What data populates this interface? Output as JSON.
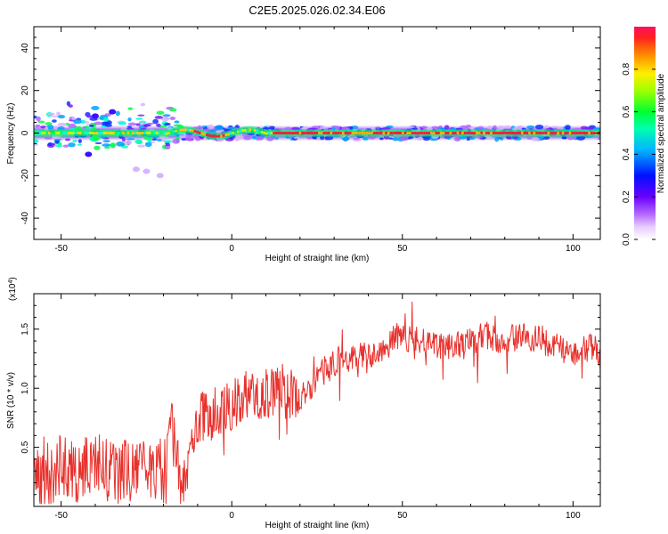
{
  "title": "C2E5.2025.026.02.34.E06",
  "chart_data": [
    {
      "type": "heatmap",
      "name": "spectrogram",
      "xlabel": "Height of straight line (km)",
      "ylabel": "Frequency (Hz)",
      "xlim": [
        -58,
        108
      ],
      "ylim": [
        -50,
        50
      ],
      "xticks": [
        -50,
        0,
        50,
        100
      ],
      "xtick_labels": [
        "-50",
        "0",
        "50",
        "100"
      ],
      "yticks": [
        -40,
        -20,
        0,
        20,
        40
      ],
      "ytick_labels": [
        "-40",
        "-20",
        "0",
        "20",
        "40"
      ],
      "colorbar": {
        "label": "Normalized spectral amplitude",
        "range": [
          0,
          1
        ],
        "ticks": [
          0.0,
          0.2,
          0.4,
          0.6,
          0.8
        ],
        "tick_labels": [
          "0.0",
          "0.2",
          "0.4",
          "0.6",
          "0.8"
        ]
      },
      "description_points": {
        "band_center_hz": 0,
        "strong_band_x_range": [
          -58,
          108
        ]
      }
    },
    {
      "type": "line",
      "name": "snr",
      "xlabel": "Height of straight line (km)",
      "ylabel": "SNR (10 * v/v)",
      "exponent_label": "(x10",
      "exponent_power": "4",
      "exponent_close": ")",
      "xlim": [
        -58,
        108
      ],
      "ylim": [
        0,
        1.8
      ],
      "xticks": [
        -50,
        0,
        50,
        100
      ],
      "xtick_labels": [
        "-50",
        "0",
        "50",
        "100"
      ],
      "yticks": [
        0.5,
        1.0,
        1.5
      ],
      "ytick_labels": [
        "0.5",
        "1.0",
        "1.5"
      ],
      "color": "#e8312c",
      "series": {
        "x": [
          -58,
          -55,
          -50,
          -45,
          -40,
          -35,
          -30,
          -25,
          -20,
          -18,
          -15,
          -12,
          -10,
          -5,
          0,
          5,
          10,
          15,
          20,
          25,
          30,
          35,
          40,
          45,
          48,
          55,
          60,
          65,
          70,
          75,
          80,
          85,
          90,
          95,
          100,
          105,
          108
        ],
        "y": [
          0.3,
          0.25,
          0.35,
          0.3,
          0.35,
          0.3,
          0.28,
          0.3,
          0.3,
          0.8,
          0.2,
          0.4,
          0.75,
          0.8,
          0.85,
          0.95,
          0.95,
          1.0,
          0.9,
          1.1,
          1.2,
          1.25,
          1.3,
          1.3,
          1.45,
          1.4,
          1.35,
          1.35,
          1.4,
          1.45,
          1.4,
          1.45,
          1.4,
          1.35,
          1.3,
          1.35,
          1.3
        ]
      }
    }
  ]
}
